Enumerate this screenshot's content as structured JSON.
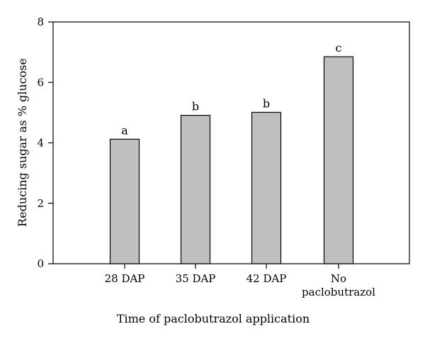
{
  "chart_data": {
    "type": "bar",
    "categories": [
      "28 DAP",
      "35 DAP",
      "42 DAP",
      "No paclobutrazol"
    ],
    "category_lines": [
      [
        "28 DAP"
      ],
      [
        "35 DAP"
      ],
      [
        "42 DAP"
      ],
      [
        "No",
        "paclobutrazol"
      ]
    ],
    "values": [
      4.12,
      4.91,
      5.01,
      6.85
    ],
    "labels": [
      "a",
      "b",
      "b",
      "c"
    ],
    "xlabel": "Time of paclobutrazol application",
    "ylabel": "Reducing sugar as % glucose",
    "ylim": [
      0,
      8
    ],
    "yticks": [
      0,
      2,
      4,
      6,
      8
    ],
    "grid": false,
    "bar_color": "#bfbfbf",
    "edge_color": "#000000"
  }
}
